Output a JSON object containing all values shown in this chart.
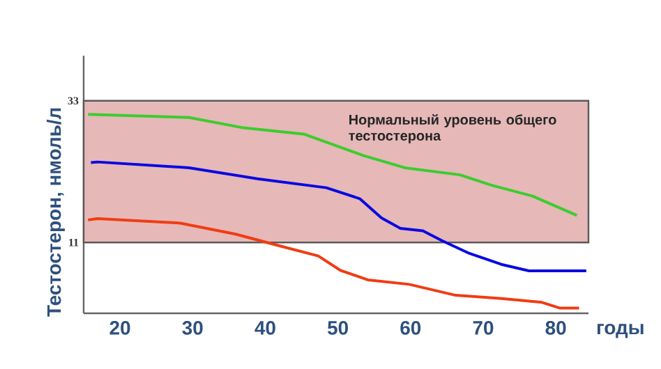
{
  "chart_data": {
    "type": "line",
    "xlabel": "годы",
    "ylabel": "Тестостерон, нмоль/л",
    "xlim": [
      15,
      84.5
    ],
    "ylim": [
      0,
      40
    ],
    "xticks": [
      20,
      30,
      40,
      50,
      60,
      70,
      80
    ],
    "yticks": [
      11,
      33
    ],
    "bands": [
      {
        "axis": "y",
        "from": 11,
        "to": 33,
        "label": "Нормальный уровень общего тестостерона",
        "color": "#e6b8b8"
      }
    ],
    "series": [
      {
        "color": "#3ccc2e",
        "x": [
          15.6,
          29.5,
          37,
          45.4,
          53.5,
          59.2,
          66.8,
          71.1,
          76.8,
          82.9
        ],
        "values": [
          30.9,
          30.4,
          28.8,
          27.8,
          24.5,
          22.6,
          21.5,
          19.9,
          18.2,
          15.2
        ]
      },
      {
        "color": "#0a0ae0",
        "x": [
          16,
          16.9,
          29.5,
          38.9,
          48.4,
          53,
          56,
          58.6,
          61.7,
          64.3,
          68.1,
          72.5,
          76.3,
          84.2
        ],
        "values": [
          23.4,
          23.5,
          22.6,
          20.9,
          19.5,
          17.8,
          14.8,
          13.2,
          12.8,
          11.3,
          9.3,
          7.6,
          6.6,
          6.6
        ]
      },
      {
        "color": "#f03c14",
        "x": [
          15.6,
          16.9,
          28.3,
          35.9,
          42.2,
          47.3,
          50.3,
          54.1,
          59.8,
          66.2,
          72.5,
          78.1,
          80.6,
          83.2
        ],
        "values": [
          14.5,
          14.7,
          14.0,
          12.3,
          10.4,
          8.9,
          6.7,
          5.2,
          4.5,
          2.8,
          2.3,
          1.7,
          0.8,
          0.8
        ]
      }
    ]
  }
}
